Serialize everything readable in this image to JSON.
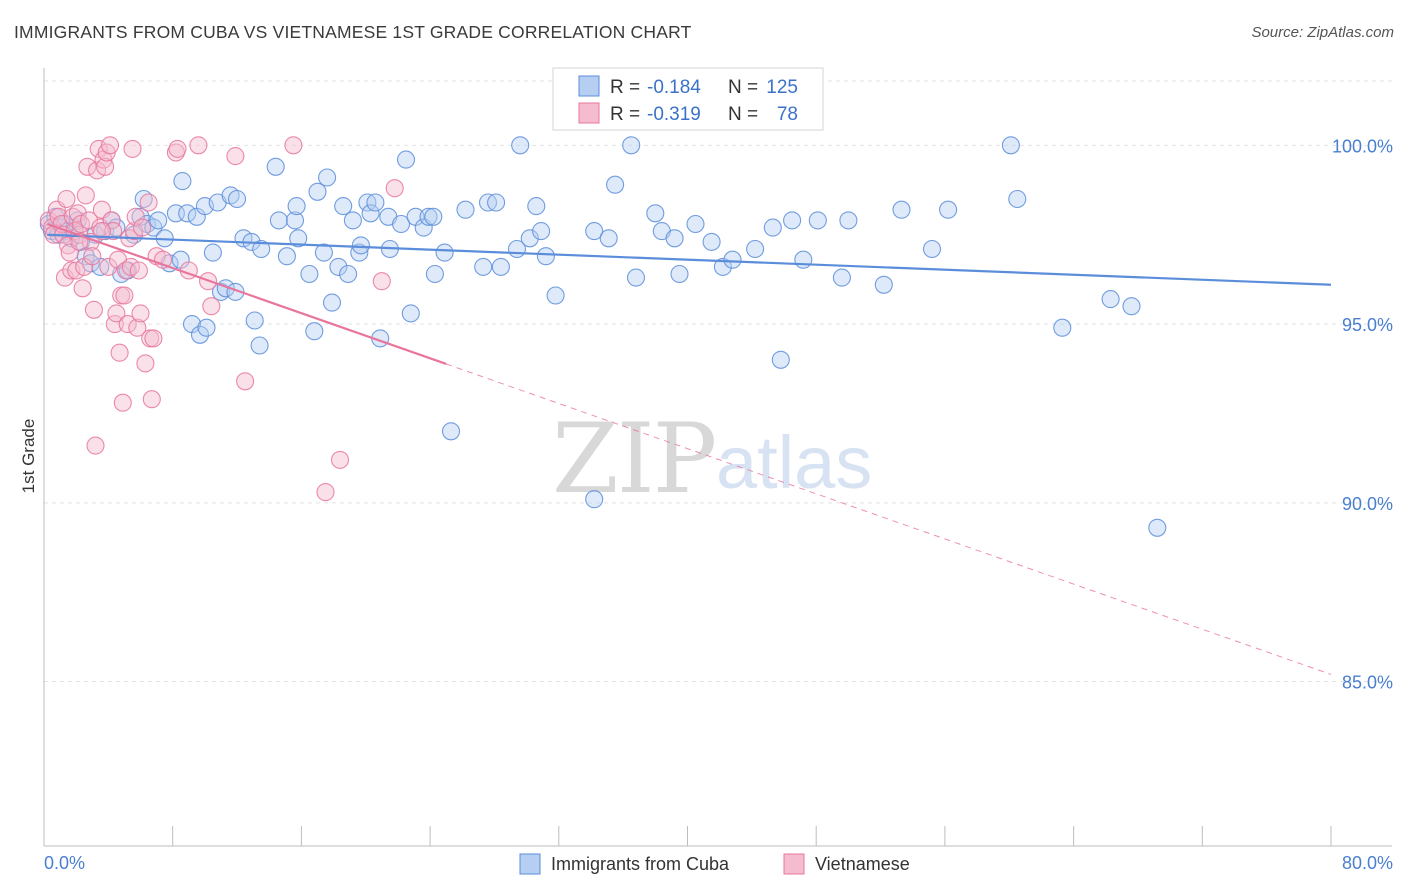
{
  "title": "IMMIGRANTS FROM CUBA VS VIETNAMESE 1ST GRADE CORRELATION CHART",
  "source": "Source: ZipAtlas.com",
  "watermark": {
    "zip": "ZIP",
    "atlas": "atlas"
  },
  "colors": {
    "blue": "#5b8ddb",
    "blue_fill": "#b5cef1",
    "pink": "#e8769c",
    "pink_fill": "#f5bccf",
    "axis_label": "#4a7fd0",
    "grid": "#e3e3e3"
  },
  "legend": {
    "r_label": "R =",
    "n_label": "N =",
    "rows": [
      {
        "r": "-0.184",
        "n": "125"
      },
      {
        "r": "-0.319",
        "n": "78"
      }
    ]
  },
  "chart_data": {
    "type": "scatter",
    "ylabel": "1st Grade",
    "xlim": [
      0,
      80
    ],
    "ylim": [
      80.4,
      101.8
    ],
    "x_tick_labels": [
      "0.0%",
      "80.0%"
    ],
    "y_ticks": [
      {
        "value": 85,
        "label": "85.0%"
      },
      {
        "value": 90,
        "label": "90.0%"
      },
      {
        "value": 95,
        "label": "95.0%"
      },
      {
        "value": 100,
        "label": "100.0%"
      }
    ],
    "grid": true,
    "series": [
      {
        "name": "Immigrants from Cuba",
        "color": "blue",
        "trend": {
          "x0": 0.2,
          "y0": 97.5,
          "x1": 80,
          "y1": 96.1,
          "dashed_from_x": null
        },
        "points": [
          [
            0.3,
            97.8
          ],
          [
            0.5,
            97.6
          ],
          [
            0.7,
            98.0
          ],
          [
            0.9,
            97.5
          ],
          [
            1.1,
            97.7
          ],
          [
            1.3,
            97.8
          ],
          [
            1.5,
            97.6
          ],
          [
            1.7,
            97.4
          ],
          [
            1.9,
            97.7
          ],
          [
            2.1,
            97.9
          ],
          [
            2.3,
            97.3
          ],
          [
            2.6,
            96.9
          ],
          [
            2.9,
            96.7
          ],
          [
            3.2,
            97.5
          ],
          [
            3.5,
            96.6
          ],
          [
            3.8,
            97.6
          ],
          [
            4.2,
            97.9
          ],
          [
            4.5,
            97.7
          ],
          [
            4.8,
            96.4
          ],
          [
            5.2,
            96.5
          ],
          [
            5.6,
            97.5
          ],
          [
            6.0,
            98.0
          ],
          [
            6.2,
            98.5
          ],
          [
            6.4,
            97.8
          ],
          [
            6.8,
            97.7
          ],
          [
            7.1,
            97.9
          ],
          [
            7.5,
            97.4
          ],
          [
            7.8,
            96.7
          ],
          [
            8.2,
            98.1
          ],
          [
            8.5,
            96.8
          ],
          [
            8.6,
            99.0
          ],
          [
            8.9,
            98.1
          ],
          [
            9.2,
            95.0
          ],
          [
            9.5,
            98.0
          ],
          [
            9.7,
            94.7
          ],
          [
            10.0,
            98.3
          ],
          [
            10.1,
            94.9
          ],
          [
            10.5,
            97.0
          ],
          [
            10.8,
            98.4
          ],
          [
            11.0,
            95.9
          ],
          [
            11.3,
            96.0
          ],
          [
            11.6,
            98.6
          ],
          [
            11.9,
            95.9
          ],
          [
            12.0,
            98.5
          ],
          [
            12.4,
            97.4
          ],
          [
            12.9,
            97.3
          ],
          [
            13.1,
            95.1
          ],
          [
            13.4,
            94.4
          ],
          [
            13.5,
            97.1
          ],
          [
            14.4,
            99.4
          ],
          [
            14.6,
            97.9
          ],
          [
            15.1,
            96.9
          ],
          [
            15.6,
            97.9
          ],
          [
            15.7,
            98.3
          ],
          [
            15.8,
            97.4
          ],
          [
            16.5,
            96.4
          ],
          [
            16.8,
            94.8
          ],
          [
            17.0,
            98.7
          ],
          [
            17.4,
            97.0
          ],
          [
            17.6,
            99.1
          ],
          [
            17.9,
            95.6
          ],
          [
            18.3,
            96.6
          ],
          [
            18.6,
            98.3
          ],
          [
            18.9,
            96.4
          ],
          [
            19.2,
            97.9
          ],
          [
            19.6,
            97.0
          ],
          [
            19.7,
            97.2
          ],
          [
            20.1,
            98.4
          ],
          [
            20.3,
            98.1
          ],
          [
            20.6,
            98.4
          ],
          [
            20.9,
            94.6
          ],
          [
            21.4,
            98.0
          ],
          [
            21.5,
            97.1
          ],
          [
            22.2,
            97.8
          ],
          [
            22.5,
            99.6
          ],
          [
            22.8,
            95.3
          ],
          [
            23.1,
            98.0
          ],
          [
            23.6,
            97.7
          ],
          [
            23.9,
            98.0
          ],
          [
            24.2,
            98.0
          ],
          [
            24.3,
            96.4
          ],
          [
            24.9,
            97.0
          ],
          [
            25.3,
            92.0
          ],
          [
            26.2,
            98.2
          ],
          [
            27.3,
            96.6
          ],
          [
            27.6,
            98.4
          ],
          [
            28.1,
            98.4
          ],
          [
            28.4,
            96.6
          ],
          [
            29.4,
            97.1
          ],
          [
            29.6,
            100.0
          ],
          [
            30.2,
            97.4
          ],
          [
            30.6,
            98.3
          ],
          [
            30.9,
            97.6
          ],
          [
            31.2,
            96.9
          ],
          [
            31.8,
            95.8
          ],
          [
            34.2,
            97.6
          ],
          [
            34.2,
            90.1
          ],
          [
            35.1,
            97.4
          ],
          [
            35.5,
            98.9
          ],
          [
            36.5,
            100.0
          ],
          [
            36.8,
            96.3
          ],
          [
            38.0,
            98.1
          ],
          [
            38.4,
            97.6
          ],
          [
            39.2,
            97.4
          ],
          [
            39.5,
            96.4
          ],
          [
            40.5,
            97.8
          ],
          [
            41.5,
            97.3
          ],
          [
            42.2,
            96.6
          ],
          [
            42.8,
            96.8
          ],
          [
            44.2,
            97.1
          ],
          [
            45.3,
            97.7
          ],
          [
            45.8,
            94.0
          ],
          [
            46.5,
            97.9
          ],
          [
            47.2,
            96.8
          ],
          [
            48.1,
            97.9
          ],
          [
            49.6,
            96.3
          ],
          [
            50.0,
            97.9
          ],
          [
            52.2,
            96.1
          ],
          [
            53.3,
            98.2
          ],
          [
            55.2,
            97.1
          ],
          [
            56.2,
            98.2
          ],
          [
            60.1,
            100.0
          ],
          [
            60.5,
            98.5
          ],
          [
            63.3,
            94.9
          ],
          [
            66.3,
            95.7
          ],
          [
            67.6,
            95.5
          ],
          [
            69.2,
            89.3
          ]
        ]
      },
      {
        "name": "Vietnamese",
        "color": "pink",
        "trend": {
          "x0": 0.2,
          "y0": 97.8,
          "x1": 80,
          "y1": 85.2,
          "dashed_from_x": 25
        },
        "points": [
          [
            0.3,
            97.9
          ],
          [
            0.5,
            97.7
          ],
          [
            0.6,
            97.5
          ],
          [
            0.8,
            98.2
          ],
          [
            0.9,
            98.0
          ],
          [
            1.1,
            97.8
          ],
          [
            1.2,
            97.5
          ],
          [
            1.3,
            96.3
          ],
          [
            1.4,
            98.5
          ],
          [
            1.5,
            97.2
          ],
          [
            1.6,
            97.0
          ],
          [
            1.7,
            96.5
          ],
          [
            1.8,
            98.0
          ],
          [
            1.9,
            97.6
          ],
          [
            2.0,
            96.5
          ],
          [
            2.1,
            98.1
          ],
          [
            2.2,
            97.5
          ],
          [
            2.3,
            97.8
          ],
          [
            2.4,
            96.0
          ],
          [
            2.5,
            96.6
          ],
          [
            2.6,
            98.6
          ],
          [
            2.7,
            99.4
          ],
          [
            2.8,
            97.9
          ],
          [
            2.9,
            97.3
          ],
          [
            3.0,
            96.9
          ],
          [
            3.1,
            95.4
          ],
          [
            3.2,
            91.6
          ],
          [
            3.3,
            99.3
          ],
          [
            3.4,
            99.9
          ],
          [
            3.5,
            97.7
          ],
          [
            3.6,
            98.2
          ],
          [
            3.7,
            99.6
          ],
          [
            3.8,
            99.4
          ],
          [
            3.9,
            99.8
          ],
          [
            4.0,
            96.6
          ],
          [
            4.1,
            100.0
          ],
          [
            4.2,
            97.9
          ],
          [
            4.3,
            97.6
          ],
          [
            4.4,
            95.0
          ],
          [
            4.5,
            95.3
          ],
          [
            4.6,
            96.8
          ],
          [
            4.7,
            94.2
          ],
          [
            4.8,
            95.8
          ],
          [
            4.9,
            92.8
          ],
          [
            5.0,
            95.8
          ],
          [
            5.1,
            96.5
          ],
          [
            5.2,
            95.0
          ],
          [
            5.3,
            97.4
          ],
          [
            5.4,
            96.6
          ],
          [
            5.5,
            99.9
          ],
          [
            5.6,
            97.6
          ],
          [
            5.7,
            98.0
          ],
          [
            5.8,
            94.9
          ],
          [
            5.9,
            96.5
          ],
          [
            6.0,
            95.3
          ],
          [
            6.3,
            93.9
          ],
          [
            6.5,
            98.4
          ],
          [
            6.6,
            94.6
          ],
          [
            6.7,
            92.9
          ],
          [
            6.8,
            94.6
          ],
          [
            7.0,
            96.9
          ],
          [
            7.4,
            96.8
          ],
          [
            8.2,
            99.8
          ],
          [
            8.3,
            99.9
          ],
          [
            9.0,
            96.5
          ],
          [
            9.6,
            100.0
          ],
          [
            10.2,
            96.2
          ],
          [
            10.4,
            95.5
          ],
          [
            11.9,
            99.7
          ],
          [
            12.5,
            93.4
          ],
          [
            15.5,
            100.0
          ],
          [
            17.5,
            90.3
          ],
          [
            18.4,
            91.2
          ],
          [
            21.0,
            96.2
          ],
          [
            21.8,
            98.8
          ],
          [
            6.1,
            97.7
          ],
          [
            2.2,
            97.3
          ],
          [
            3.6,
            97.6
          ]
        ]
      }
    ]
  },
  "bottom_legend": {
    "items": [
      "Immigrants from Cuba",
      "Vietnamese"
    ]
  }
}
